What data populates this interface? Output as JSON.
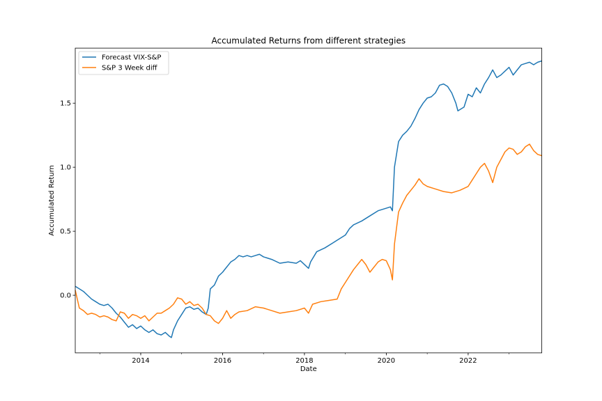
{
  "chart_data": {
    "type": "line",
    "title": "Accumulated Returns from different strategies",
    "xlabel": "Date",
    "ylabel": "Accumulated Return",
    "xlim": [
      2012.4,
      2023.8
    ],
    "ylim": [
      -0.45,
      1.93
    ],
    "x_ticks": [
      2014,
      2016,
      2018,
      2020,
      2022
    ],
    "x_tick_labels": [
      "2014",
      "2016",
      "2018",
      "2020",
      "2022"
    ],
    "y_ticks": [
      0.0,
      0.5,
      1.0,
      1.5
    ],
    "y_tick_labels": [
      "0.0",
      "0.5",
      "1.0",
      "1.5"
    ],
    "grid": false,
    "legend_position": "top-left",
    "colors": [
      "#1f77b4",
      "#ff7f0e"
    ],
    "series": [
      {
        "name": "Forecast VIX-S&P",
        "color": "#1f77b4",
        "points": [
          [
            2012.4,
            0.07
          ],
          [
            2012.5,
            0.05
          ],
          [
            2012.6,
            0.03
          ],
          [
            2012.7,
            0.0
          ],
          [
            2012.8,
            -0.03
          ],
          [
            2012.9,
            -0.05
          ],
          [
            2013.0,
            -0.07
          ],
          [
            2013.1,
            -0.08
          ],
          [
            2013.2,
            -0.07
          ],
          [
            2013.3,
            -0.1
          ],
          [
            2013.4,
            -0.14
          ],
          [
            2013.5,
            -0.17
          ],
          [
            2013.6,
            -0.21
          ],
          [
            2013.7,
            -0.25
          ],
          [
            2013.8,
            -0.23
          ],
          [
            2013.9,
            -0.26
          ],
          [
            2014.0,
            -0.24
          ],
          [
            2014.1,
            -0.27
          ],
          [
            2014.2,
            -0.29
          ],
          [
            2014.3,
            -0.27
          ],
          [
            2014.4,
            -0.3
          ],
          [
            2014.5,
            -0.31
          ],
          [
            2014.6,
            -0.29
          ],
          [
            2014.7,
            -0.32
          ],
          [
            2014.75,
            -0.33
          ],
          [
            2014.8,
            -0.27
          ],
          [
            2014.9,
            -0.2
          ],
          [
            2015.0,
            -0.15
          ],
          [
            2015.1,
            -0.1
          ],
          [
            2015.2,
            -0.09
          ],
          [
            2015.3,
            -0.11
          ],
          [
            2015.4,
            -0.1
          ],
          [
            2015.5,
            -0.13
          ],
          [
            2015.6,
            -0.15
          ],
          [
            2015.65,
            -0.1
          ],
          [
            2015.7,
            0.05
          ],
          [
            2015.8,
            0.08
          ],
          [
            2015.9,
            0.15
          ],
          [
            2016.0,
            0.18
          ],
          [
            2016.1,
            0.22
          ],
          [
            2016.2,
            0.26
          ],
          [
            2016.3,
            0.28
          ],
          [
            2016.4,
            0.31
          ],
          [
            2016.5,
            0.3
          ],
          [
            2016.6,
            0.31
          ],
          [
            2016.7,
            0.3
          ],
          [
            2016.8,
            0.31
          ],
          [
            2016.9,
            0.32
          ],
          [
            2017.0,
            0.3
          ],
          [
            2017.2,
            0.28
          ],
          [
            2017.4,
            0.25
          ],
          [
            2017.6,
            0.26
          ],
          [
            2017.8,
            0.25
          ],
          [
            2017.9,
            0.27
          ],
          [
            2018.0,
            0.24
          ],
          [
            2018.1,
            0.21
          ],
          [
            2018.15,
            0.26
          ],
          [
            2018.3,
            0.34
          ],
          [
            2018.5,
            0.37
          ],
          [
            2018.7,
            0.41
          ],
          [
            2018.8,
            0.43
          ],
          [
            2019.0,
            0.47
          ],
          [
            2019.1,
            0.52
          ],
          [
            2019.2,
            0.55
          ],
          [
            2019.4,
            0.58
          ],
          [
            2019.6,
            0.62
          ],
          [
            2019.8,
            0.66
          ],
          [
            2020.0,
            0.68
          ],
          [
            2020.1,
            0.69
          ],
          [
            2020.15,
            0.66
          ],
          [
            2020.2,
            1.0
          ],
          [
            2020.3,
            1.2
          ],
          [
            2020.4,
            1.25
          ],
          [
            2020.5,
            1.28
          ],
          [
            2020.6,
            1.32
          ],
          [
            2020.7,
            1.38
          ],
          [
            2020.8,
            1.45
          ],
          [
            2020.9,
            1.5
          ],
          [
            2021.0,
            1.54
          ],
          [
            2021.1,
            1.55
          ],
          [
            2021.2,
            1.58
          ],
          [
            2021.3,
            1.64
          ],
          [
            2021.4,
            1.65
          ],
          [
            2021.5,
            1.63
          ],
          [
            2021.6,
            1.58
          ],
          [
            2021.7,
            1.5
          ],
          [
            2021.75,
            1.44
          ],
          [
            2021.9,
            1.47
          ],
          [
            2022.0,
            1.57
          ],
          [
            2022.1,
            1.55
          ],
          [
            2022.2,
            1.62
          ],
          [
            2022.3,
            1.58
          ],
          [
            2022.4,
            1.65
          ],
          [
            2022.5,
            1.7
          ],
          [
            2022.6,
            1.76
          ],
          [
            2022.7,
            1.7
          ],
          [
            2022.8,
            1.72
          ],
          [
            2022.9,
            1.75
          ],
          [
            2023.0,
            1.78
          ],
          [
            2023.1,
            1.72
          ],
          [
            2023.2,
            1.76
          ],
          [
            2023.3,
            1.8
          ],
          [
            2023.4,
            1.81
          ],
          [
            2023.5,
            1.82
          ],
          [
            2023.6,
            1.8
          ],
          [
            2023.7,
            1.82
          ],
          [
            2023.8,
            1.83
          ]
        ]
      },
      {
        "name": "S&P 3 Week diff",
        "color": "#ff7f0e",
        "points": [
          [
            2012.4,
            0.04
          ],
          [
            2012.5,
            -0.1
          ],
          [
            2012.6,
            -0.12
          ],
          [
            2012.7,
            -0.15
          ],
          [
            2012.8,
            -0.14
          ],
          [
            2012.9,
            -0.15
          ],
          [
            2013.0,
            -0.17
          ],
          [
            2013.1,
            -0.16
          ],
          [
            2013.2,
            -0.17
          ],
          [
            2013.3,
            -0.19
          ],
          [
            2013.4,
            -0.2
          ],
          [
            2013.5,
            -0.13
          ],
          [
            2013.6,
            -0.14
          ],
          [
            2013.7,
            -0.18
          ],
          [
            2013.8,
            -0.15
          ],
          [
            2013.9,
            -0.16
          ],
          [
            2014.0,
            -0.18
          ],
          [
            2014.1,
            -0.16
          ],
          [
            2014.2,
            -0.2
          ],
          [
            2014.3,
            -0.17
          ],
          [
            2014.4,
            -0.14
          ],
          [
            2014.5,
            -0.14
          ],
          [
            2014.6,
            -0.12
          ],
          [
            2014.7,
            -0.1
          ],
          [
            2014.8,
            -0.07
          ],
          [
            2014.9,
            -0.02
          ],
          [
            2015.0,
            -0.03
          ],
          [
            2015.1,
            -0.07
          ],
          [
            2015.2,
            -0.05
          ],
          [
            2015.3,
            -0.08
          ],
          [
            2015.4,
            -0.07
          ],
          [
            2015.5,
            -0.1
          ],
          [
            2015.6,
            -0.15
          ],
          [
            2015.7,
            -0.16
          ],
          [
            2015.8,
            -0.2
          ],
          [
            2015.9,
            -0.22
          ],
          [
            2016.0,
            -0.18
          ],
          [
            2016.1,
            -0.12
          ],
          [
            2016.2,
            -0.18
          ],
          [
            2016.3,
            -0.15
          ],
          [
            2016.4,
            -0.13
          ],
          [
            2016.6,
            -0.12
          ],
          [
            2016.8,
            -0.09
          ],
          [
            2017.0,
            -0.1
          ],
          [
            2017.2,
            -0.12
          ],
          [
            2017.4,
            -0.14
          ],
          [
            2017.6,
            -0.13
          ],
          [
            2017.8,
            -0.12
          ],
          [
            2018.0,
            -0.1
          ],
          [
            2018.1,
            -0.14
          ],
          [
            2018.2,
            -0.07
          ],
          [
            2018.4,
            -0.05
          ],
          [
            2018.6,
            -0.04
          ],
          [
            2018.8,
            -0.03
          ],
          [
            2018.9,
            0.05
          ],
          [
            2019.0,
            0.1
          ],
          [
            2019.2,
            0.2
          ],
          [
            2019.4,
            0.28
          ],
          [
            2019.5,
            0.24
          ],
          [
            2019.6,
            0.18
          ],
          [
            2019.7,
            0.22
          ],
          [
            2019.8,
            0.26
          ],
          [
            2019.9,
            0.28
          ],
          [
            2020.0,
            0.27
          ],
          [
            2020.1,
            0.2
          ],
          [
            2020.15,
            0.12
          ],
          [
            2020.2,
            0.4
          ],
          [
            2020.3,
            0.65
          ],
          [
            2020.4,
            0.72
          ],
          [
            2020.5,
            0.78
          ],
          [
            2020.6,
            0.82
          ],
          [
            2020.7,
            0.86
          ],
          [
            2020.8,
            0.91
          ],
          [
            2020.9,
            0.87
          ],
          [
            2021.0,
            0.85
          ],
          [
            2021.2,
            0.83
          ],
          [
            2021.4,
            0.81
          ],
          [
            2021.6,
            0.8
          ],
          [
            2021.8,
            0.82
          ],
          [
            2022.0,
            0.85
          ],
          [
            2022.1,
            0.9
          ],
          [
            2022.2,
            0.95
          ],
          [
            2022.3,
            1.0
          ],
          [
            2022.4,
            1.03
          ],
          [
            2022.5,
            0.97
          ],
          [
            2022.6,
            0.88
          ],
          [
            2022.7,
            1.0
          ],
          [
            2022.8,
            1.06
          ],
          [
            2022.9,
            1.12
          ],
          [
            2023.0,
            1.15
          ],
          [
            2023.1,
            1.14
          ],
          [
            2023.2,
            1.1
          ],
          [
            2023.3,
            1.12
          ],
          [
            2023.4,
            1.16
          ],
          [
            2023.5,
            1.18
          ],
          [
            2023.6,
            1.13
          ],
          [
            2023.7,
            1.1
          ],
          [
            2023.8,
            1.09
          ]
        ]
      }
    ]
  }
}
